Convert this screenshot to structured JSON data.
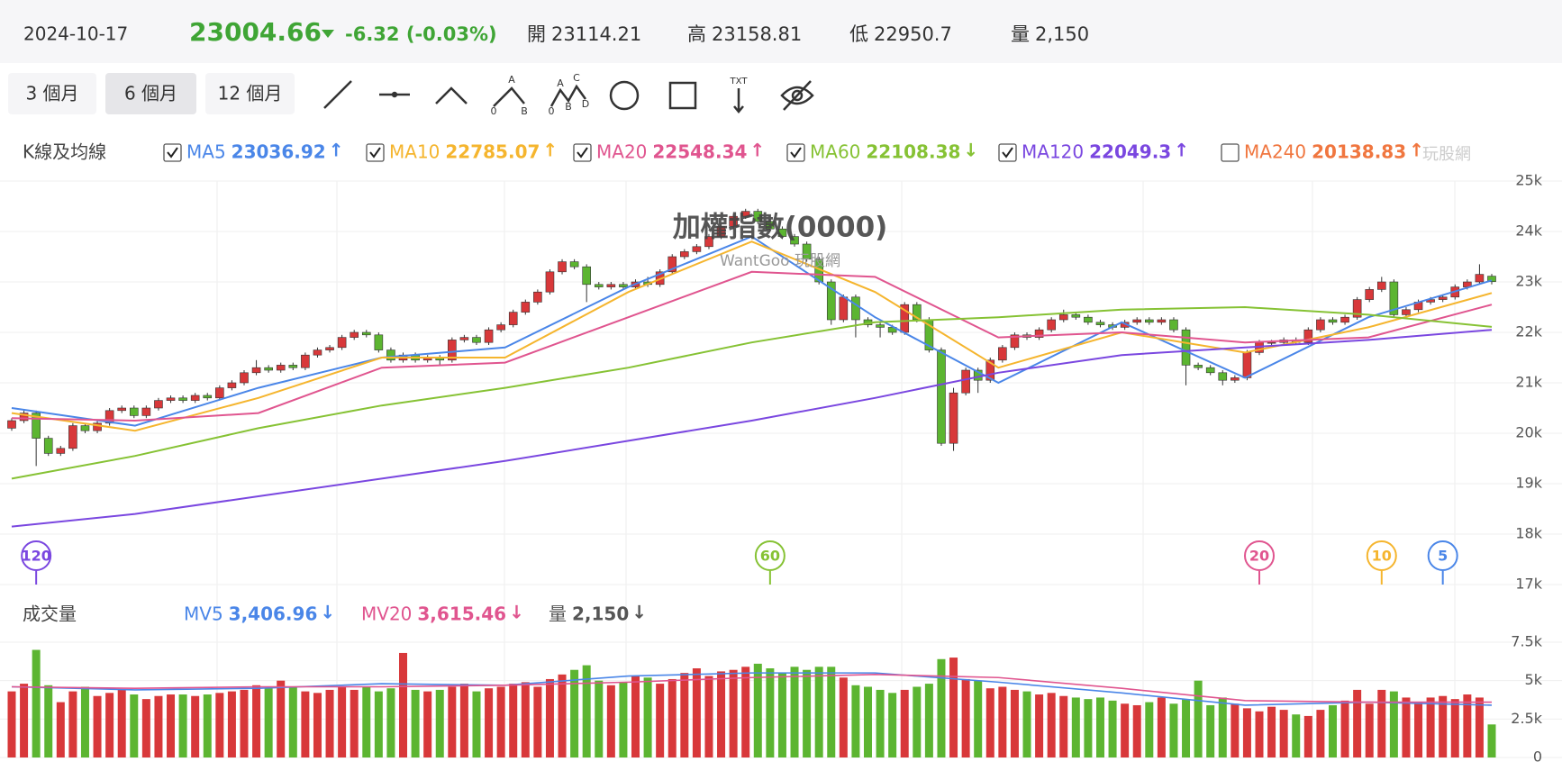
{
  "header": {
    "date": "2024-10-17",
    "price": 23004.66,
    "change": "-6.32 (-0.03%)",
    "stats": [
      {
        "label": "開",
        "value": 23114.21
      },
      {
        "label": "高",
        "value": 23158.81
      },
      {
        "label": "低",
        "value": 22950.7
      },
      {
        "label": "量",
        "value": "2,150"
      }
    ]
  },
  "range_buttons": [
    {
      "label": "3 個月",
      "active": false
    },
    {
      "label": "6 個月",
      "active": true
    },
    {
      "label": "12 個月",
      "active": false
    }
  ],
  "tool_letters": {
    "abc": [
      "A",
      "B",
      "0"
    ],
    "abcd": [
      "A",
      "C",
      "B",
      "D",
      "0"
    ],
    "text": "TXT"
  },
  "watermark": "玩股網",
  "chart_data": {
    "type": "candlestick",
    "title": "加權指數(0000)",
    "subtitle": "WantGoo 玩股網",
    "panel_label": "K線及均線",
    "up_color": "#d8383a",
    "down_color": "#5cb531",
    "ylim": [
      17000,
      25000
    ],
    "yticks": [
      {
        "value": 17000,
        "label": "17k"
      },
      {
        "value": 18000,
        "label": "18k"
      },
      {
        "value": 19000,
        "label": "19k"
      },
      {
        "value": 20000,
        "label": "20k"
      },
      {
        "value": 21000,
        "label": "21k"
      },
      {
        "value": 22000,
        "label": "22k"
      },
      {
        "value": 23000,
        "label": "23k"
      },
      {
        "value": 24000,
        "label": "24k"
      },
      {
        "value": 25000,
        "label": "25k"
      }
    ],
    "grid": true,
    "open": [
      20100,
      20250,
      20400,
      19900,
      19600,
      19700,
      20150,
      20050,
      20200,
      20450,
      20500,
      20350,
      20500,
      20650,
      20700,
      20650,
      20750,
      20700,
      20900,
      21000,
      21200,
      21300,
      21250,
      21350,
      21300,
      21550,
      21650,
      21700,
      21900,
      22000,
      21950,
      21650,
      21450,
      21550,
      21450,
      21500,
      21450,
      21850,
      21900,
      21800,
      22050,
      22150,
      22400,
      22600,
      22800,
      23200,
      23400,
      23300,
      22950,
      22900,
      22950,
      22900,
      23000,
      22950,
      23200,
      23500,
      23600,
      23700,
      23900,
      24100,
      24300,
      24400,
      24200,
      24050,
      23900,
      23750,
      23450,
      23000,
      22250,
      22700,
      22250,
      22150,
      22100,
      22000,
      22550,
      22250,
      21650,
      19800,
      20800,
      21250,
      21050,
      21450,
      21700,
      21950,
      21900,
      22050,
      22250,
      22350,
      22300,
      22200,
      22150,
      22100,
      22200,
      22250,
      22200,
      22250,
      22050,
      21350,
      21300,
      21200,
      21050,
      21100,
      21600,
      21800,
      21800,
      21850,
      21800,
      22050,
      22250,
      22200,
      22300,
      22650,
      22850,
      23000,
      22350,
      22450,
      22600,
      22650,
      22700,
      22900,
      23000,
      23114.21
    ],
    "high": [
      20300,
      20450,
      20450,
      19950,
      19750,
      20200,
      20200,
      20250,
      20500,
      20550,
      20550,
      20550,
      20700,
      20750,
      20750,
      20800,
      20800,
      20950,
      21050,
      21250,
      21450,
      21350,
      21400,
      21400,
      21600,
      21700,
      21750,
      21950,
      22050,
      22050,
      22000,
      21700,
      21600,
      21600,
      21550,
      21550,
      21900,
      21950,
      21950,
      22100,
      22200,
      22450,
      22650,
      22850,
      23250,
      23450,
      23450,
      23350,
      23000,
      23000,
      23000,
      23050,
      23100,
      23250,
      23550,
      23650,
      23750,
      23950,
      24150,
      24350,
      24450,
      24450,
      24250,
      24100,
      23950,
      23800,
      23500,
      23050,
      22750,
      22750,
      22300,
      22200,
      22150,
      22600,
      22600,
      22300,
      21700,
      20900,
      21300,
      21300,
      21500,
      21750,
      22000,
      22000,
      22100,
      22300,
      22450,
      22400,
      22350,
      22250,
      22200,
      22250,
      22300,
      22300,
      22300,
      22300,
      22100,
      21400,
      21350,
      21250,
      21150,
      21650,
      21850,
      21850,
      21900,
      21900,
      22100,
      22300,
      22300,
      22350,
      22700,
      22900,
      23100,
      23050,
      22500,
      22650,
      22700,
      22750,
      22950,
      23050,
      23350,
      23158.81
    ],
    "low": [
      20050,
      20200,
      19350,
      19550,
      19550,
      19650,
      20000,
      20000,
      20150,
      20400,
      20300,
      20300,
      20450,
      20600,
      20600,
      20600,
      20650,
      20650,
      20850,
      20950,
      21150,
      21200,
      21200,
      21250,
      21250,
      21500,
      21600,
      21650,
      21850,
      21900,
      21600,
      21400,
      21400,
      21400,
      21400,
      21350,
      21400,
      21800,
      21750,
      21750,
      22000,
      22100,
      22350,
      22550,
      22750,
      23150,
      23250,
      22600,
      22850,
      22850,
      22850,
      22850,
      22900,
      22900,
      23150,
      23450,
      23550,
      23650,
      23850,
      24050,
      24250,
      24150,
      24000,
      23850,
      23700,
      23400,
      22950,
      22150,
      22200,
      21900,
      22100,
      21900,
      21950,
      21950,
      22200,
      21600,
      19750,
      19650,
      20750,
      20800,
      21000,
      21400,
      21650,
      21850,
      21850,
      22000,
      22200,
      22250,
      22150,
      22100,
      22050,
      22050,
      22150,
      22150,
      22150,
      22000,
      20950,
      21250,
      21150,
      20950,
      21000,
      21050,
      21550,
      21750,
      21750,
      21750,
      21750,
      22000,
      22150,
      22150,
      22250,
      22600,
      22800,
      22300,
      22300,
      22400,
      22550,
      22600,
      22650,
      22850,
      22950,
      22950.7
    ],
    "close": [
      20250,
      20400,
      19900,
      19600,
      19700,
      20150,
      20050,
      20200,
      20450,
      20500,
      20350,
      20500,
      20650,
      20700,
      20650,
      20750,
      20700,
      20900,
      21000,
      21200,
      21300,
      21250,
      21350,
      21300,
      21550,
      21650,
      21700,
      21900,
      22000,
      21950,
      21650,
      21450,
      21550,
      21450,
      21500,
      21450,
      21850,
      21900,
      21800,
      22050,
      22150,
      22400,
      22600,
      22800,
      23200,
      23400,
      23300,
      22950,
      22900,
      22950,
      22900,
      23000,
      22950,
      23200,
      23500,
      23600,
      23700,
      23900,
      24100,
      24300,
      24400,
      24200,
      24050,
      23900,
      23750,
      23450,
      23000,
      22250,
      22700,
      22250,
      22150,
      22100,
      22000,
      22550,
      22250,
      21650,
      19800,
      20800,
      21250,
      21050,
      21450,
      21700,
      21950,
      21900,
      22050,
      22250,
      22350,
      22300,
      22200,
      22150,
      22100,
      22200,
      22250,
      22200,
      22250,
      22050,
      21350,
      21300,
      21200,
      21050,
      21100,
      21600,
      21800,
      21800,
      21850,
      21800,
      22050,
      22250,
      22200,
      22300,
      22650,
      22850,
      23000,
      22350,
      22450,
      22600,
      22650,
      22700,
      22900,
      23000,
      23150,
      23004.66
    ],
    "ma_lines": [
      {
        "name": "MA5",
        "value": 23036.92,
        "arrow": "↑",
        "checked": true,
        "color": "#4a86e8",
        "values": [
          20500,
          20150,
          20900,
          21500,
          21700,
          22900,
          23900,
          22300,
          21000,
          22200,
          21100,
          22300,
          23030
        ]
      },
      {
        "name": "MA10",
        "value": 22785.07,
        "arrow": "↑",
        "checked": true,
        "color": "#f5b52e",
        "values": [
          20400,
          20050,
          20700,
          21500,
          21500,
          22800,
          23800,
          22800,
          21300,
          22000,
          21600,
          22100,
          22780
        ]
      },
      {
        "name": "MA20",
        "value": 22548.34,
        "arrow": "↑",
        "checked": true,
        "color": "#e0558f",
        "values": [
          20300,
          20250,
          20400,
          21300,
          21400,
          22300,
          23200,
          23100,
          21900,
          22000,
          21800,
          21900,
          22550
        ]
      },
      {
        "name": "MA60",
        "value": 22108.38,
        "arrow": "↓",
        "checked": true,
        "color": "#86c234",
        "values": [
          19100,
          19550,
          20100,
          20550,
          20900,
          21300,
          21800,
          22200,
          22300,
          22450,
          22500,
          22350,
          22110
        ]
      },
      {
        "name": "MA120",
        "value": 22049.3,
        "arrow": "↑",
        "checked": true,
        "color": "#7a47e0",
        "values": [
          18150,
          18400,
          18750,
          19100,
          19450,
          19850,
          20250,
          20700,
          21200,
          21550,
          21700,
          21850,
          22050
        ]
      },
      {
        "name": "MA240",
        "value": 20138.83,
        "arrow": "↑",
        "checked": false,
        "color": "#f0763f",
        "values": []
      }
    ],
    "markers": [
      {
        "label": 120,
        "color": "#7a47e0"
      },
      {
        "label": 60,
        "color": "#86c234"
      },
      {
        "label": 20,
        "color": "#e0558f"
      },
      {
        "label": 10,
        "color": "#f5b52e"
      },
      {
        "label": 5,
        "color": "#4a86e8"
      }
    ],
    "volume_panel": {
      "label": "成交量",
      "ylim": [
        0,
        7500
      ],
      "yticks": [
        0,
        {
          "value": 2500,
          "label": "2.5k"
        },
        {
          "value": 5000,
          "label": "5k"
        },
        {
          "value": 7500,
          "label": "7.5k"
        }
      ],
      "values": [
        4300,
        4800,
        7000,
        4700,
        3600,
        4300,
        4600,
        4000,
        4200,
        4400,
        4100,
        3800,
        4000,
        4100,
        4100,
        4000,
        4100,
        4200,
        4300,
        4400,
        4700,
        4500,
        5000,
        4600,
        4300,
        4200,
        4400,
        4600,
        4400,
        4600,
        4300,
        4500,
        6800,
        4400,
        4300,
        4400,
        4600,
        4800,
        4300,
        4500,
        4600,
        4800,
        4900,
        4600,
        5100,
        5400,
        5700,
        6000,
        5000,
        4700,
        4900,
        5300,
        5200,
        4800,
        5100,
        5500,
        5800,
        5300,
        5600,
        5700,
        5900,
        6100,
        5800,
        5500,
        5900,
        5700,
        5900,
        5900,
        5200,
        4700,
        4600,
        4400,
        4200,
        4400,
        4600,
        4800,
        6400,
        6500,
        5100,
        5000,
        4500,
        4600,
        4400,
        4300,
        4100,
        4200,
        4000,
        3900,
        3800,
        3900,
        3700,
        3500,
        3400,
        3600,
        3900,
        3500,
        3800,
        5000,
        3400,
        3900,
        3500,
        3200,
        3000,
        3300,
        3100,
        2800,
        2700,
        3100,
        3400,
        3700,
        4400,
        3500,
        4400,
        4300,
        3900,
        3600,
        3900,
        4000,
        3800,
        4100,
        3900,
        2150
      ],
      "lines": [
        {
          "name": "MV5",
          "value": {
            "value": 3406.96,
            "label": "3,406.96"
          },
          "arrow": "↓",
          "color": "#4a86e8",
          "values": [
            4600,
            4400,
            4500,
            4800,
            4700,
            5300,
            5500,
            5500,
            4900,
            4200,
            3400,
            3600,
            3400
          ]
        },
        {
          "name": "MV20",
          "value": {
            "value": 3615.46,
            "label": "3,615.46"
          },
          "arrow": "↓",
          "color": "#e0558f",
          "values": [
            4600,
            4500,
            4600,
            4600,
            4700,
            4900,
            5200,
            5400,
            5200,
            4500,
            3700,
            3600,
            3600
          ]
        }
      ],
      "last": {
        "name": "量",
        "value": "2,150",
        "arrow": "↓"
      }
    }
  }
}
